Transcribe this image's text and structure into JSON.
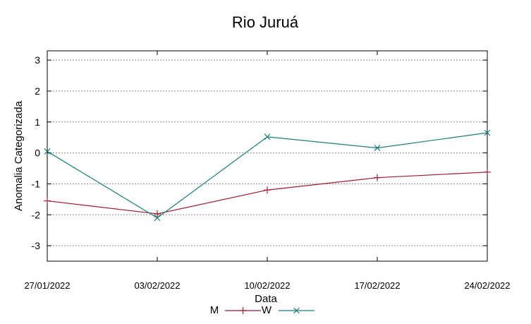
{
  "chart_data": {
    "type": "line",
    "title": "Rio Juruá",
    "xlabel": "Data",
    "ylabel": "Anomalia Categorizada",
    "categories": [
      "27/01/2022",
      "03/02/2022",
      "10/02/2022",
      "17/02/2022",
      "24/02/2022"
    ],
    "yticks": [
      "3",
      "2",
      "1",
      "0",
      "-1",
      "-2",
      "-3"
    ],
    "ylim": [
      -3.5,
      3.3
    ],
    "grid": true,
    "legend_position": "bottom",
    "series": [
      {
        "name": "M",
        "color": "#9b1b30",
        "marker": "plus",
        "values": [
          -1.55,
          -1.97,
          -1.2,
          -0.8,
          -0.62
        ]
      },
      {
        "name": "W",
        "color": "#1f7a7a",
        "marker": "x",
        "values": [
          0.05,
          -2.1,
          0.52,
          0.16,
          0.65
        ]
      }
    ]
  }
}
